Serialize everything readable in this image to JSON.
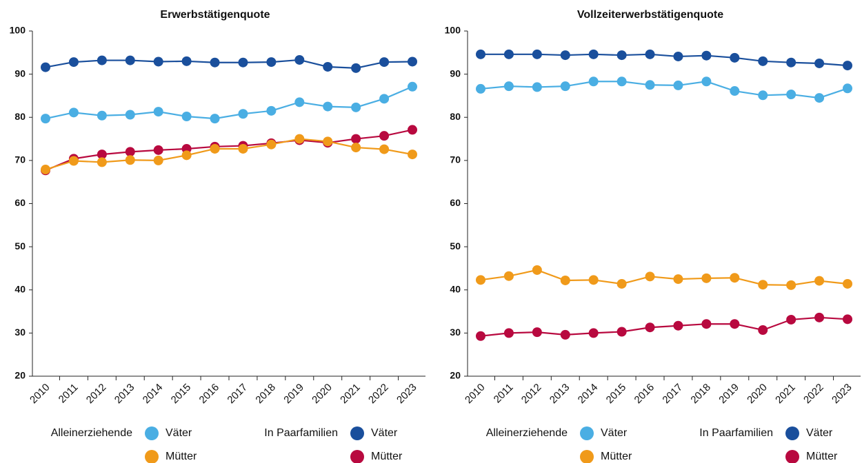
{
  "chart_data": [
    {
      "type": "line",
      "title": "Erwerbstätigenquote",
      "categories": [
        "2010",
        "2011",
        "2012",
        "2013",
        "2014",
        "2015",
        "2016",
        "2017",
        "2018",
        "2019",
        "2020",
        "2021",
        "2022",
        "2023"
      ],
      "ylim": [
        20,
        100
      ],
      "yticks": [
        20,
        30,
        40,
        50,
        60,
        70,
        80,
        90,
        100
      ],
      "series": [
        {
          "name": "Väter",
          "group": "Alleinerziehende",
          "color": "#4aaee3",
          "values": [
            79.7,
            81.1,
            80.4,
            80.6,
            81.3,
            80.2,
            79.7,
            80.8,
            81.5,
            83.5,
            82.5,
            82.3,
            84.3,
            87.1
          ]
        },
        {
          "name": "Väter",
          "group": "In Paarfamilien",
          "color": "#1a4f9c",
          "values": [
            91.6,
            92.8,
            93.2,
            93.2,
            92.9,
            93.0,
            92.7,
            92.7,
            92.8,
            93.3,
            91.7,
            91.4,
            92.8,
            92.9
          ]
        },
        {
          "name": "Mütter",
          "group": "In Paarfamilien",
          "color": "#b8093f",
          "values": [
            67.7,
            70.4,
            71.4,
            72.0,
            72.4,
            72.7,
            73.2,
            73.4,
            74.0,
            74.7,
            74.1,
            75.0,
            75.7,
            77.1
          ]
        },
        {
          "name": "Mütter",
          "group": "Alleinerziehende",
          "color": "#f09a1a",
          "values": [
            67.9,
            69.9,
            69.6,
            70.1,
            70.0,
            71.2,
            72.7,
            72.7,
            73.7,
            75.0,
            74.4,
            73.0,
            72.6,
            71.4
          ]
        }
      ]
    },
    {
      "type": "line",
      "title": "Vollzeiterwerbstätigenquote",
      "categories": [
        "2010",
        "2011",
        "2012",
        "2013",
        "2014",
        "2015",
        "2016",
        "2017",
        "2018",
        "2019",
        "2020",
        "2021",
        "2022",
        "2023"
      ],
      "ylim": [
        20,
        100
      ],
      "yticks": [
        20,
        30,
        40,
        50,
        60,
        70,
        80,
        90,
        100
      ],
      "series": [
        {
          "name": "Väter",
          "group": "Alleinerziehende",
          "color": "#4aaee3",
          "values": [
            86.6,
            87.2,
            87.0,
            87.2,
            88.3,
            88.3,
            87.5,
            87.4,
            88.3,
            86.1,
            85.1,
            85.3,
            84.5,
            86.7
          ]
        },
        {
          "name": "Väter",
          "group": "In Paarfamilien",
          "color": "#1a4f9c",
          "values": [
            94.6,
            94.6,
            94.6,
            94.4,
            94.6,
            94.4,
            94.6,
            94.1,
            94.3,
            93.8,
            93.0,
            92.7,
            92.5,
            92.0
          ]
        },
        {
          "name": "Mütter",
          "group": "In Paarfamilien",
          "color": "#b8093f",
          "values": [
            29.3,
            30.0,
            30.2,
            29.6,
            30.0,
            30.3,
            31.3,
            31.7,
            32.1,
            32.1,
            30.7,
            33.1,
            33.6,
            33.2
          ]
        },
        {
          "name": "Mütter",
          "group": "Alleinerziehende",
          "color": "#f09a1a",
          "values": [
            42.3,
            43.2,
            44.6,
            42.2,
            42.3,
            41.4,
            43.1,
            42.5,
            42.7,
            42.8,
            41.2,
            41.1,
            42.1,
            41.4
          ]
        }
      ]
    }
  ]
}
